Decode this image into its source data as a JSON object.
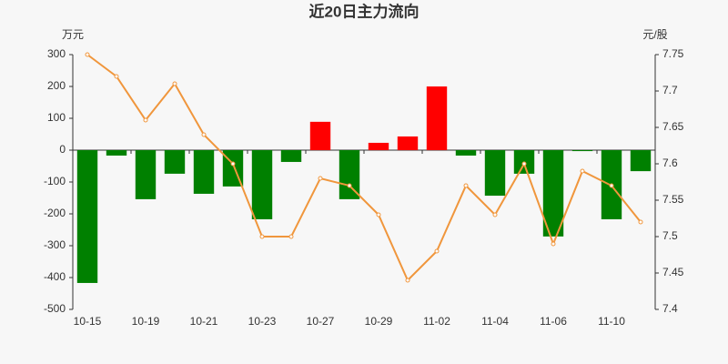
{
  "chart_data": {
    "type": "bar",
    "title": "近20日主力流向",
    "y_label": "万元",
    "y2_label": "元/股",
    "categories": [
      "10-15",
      null,
      "10-19",
      null,
      "10-21",
      null,
      "10-23",
      null,
      "10-27",
      null,
      "10-29",
      null,
      "11-02",
      null,
      "11-04",
      null,
      "11-06",
      null,
      "11-10",
      null
    ],
    "series": [
      {
        "type": "bar",
        "positive_color": "#ff0000",
        "negative_color": "#008000",
        "values": [
          -417,
          -17,
          -154,
          -74,
          -137,
          -114,
          -217,
          -37,
          89,
          -154,
          23,
          43,
          200,
          -17,
          -143,
          -74,
          -271,
          -3,
          -217,
          -66
        ]
      },
      {
        "type": "line",
        "axis": "y2",
        "color": "#f0963c",
        "values": [
          7.75,
          7.72,
          7.66,
          7.71,
          7.64,
          7.6,
          7.5,
          7.5,
          7.58,
          7.57,
          7.53,
          7.44,
          7.48,
          7.57,
          7.53,
          7.6,
          7.49,
          7.59,
          7.57,
          7.52
        ]
      }
    ],
    "ylim": [
      -500,
      300
    ],
    "yticks": [
      -500,
      -400,
      -300,
      -200,
      -100,
      0,
      100,
      200,
      300
    ],
    "y2lim": [
      7.4,
      7.75
    ],
    "y2ticks": [
      7.4,
      7.45,
      7.5,
      7.55,
      7.6,
      7.65,
      7.7,
      7.75
    ]
  }
}
